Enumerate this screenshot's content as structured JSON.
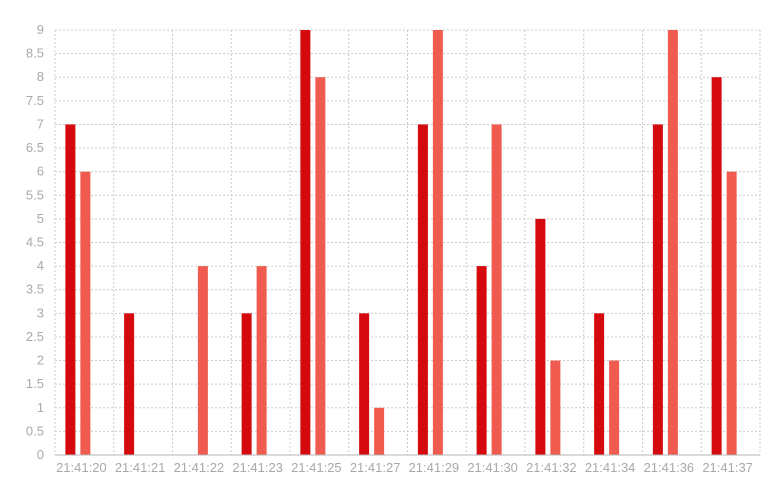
{
  "chart_data": {
    "type": "bar",
    "title": "",
    "xlabel": "",
    "ylabel": "",
    "ylim": [
      0,
      9
    ],
    "y_ticks": [
      "0",
      "0.5",
      "1",
      "1.5",
      "2",
      "2.5",
      "3",
      "3.5",
      "4",
      "4.5",
      "5",
      "5.5",
      "6",
      "6.5",
      "7",
      "7.5",
      "8",
      "8.5",
      "9"
    ],
    "categories": [
      "21:41:20",
      "21:41:21",
      "21:41:22",
      "21:41:23",
      "21:41:25",
      "21:41:27",
      "21:41:29",
      "21:41:30",
      "21:41:32",
      "21:41:34",
      "21:41:36",
      "21:41:37"
    ],
    "series": [
      {
        "values": [
          7,
          3,
          0,
          3,
          9,
          3,
          7,
          4,
          5,
          3,
          7,
          8
        ],
        "color": "#d40a0e"
      },
      {
        "values": [
          6,
          0,
          4,
          4,
          8,
          1,
          9,
          7,
          2,
          2,
          9,
          6
        ],
        "color": "#ef5b4f"
      }
    ],
    "grid": true,
    "legend": "none",
    "colors": {
      "grid": "#cccccc",
      "tick_label": "#a9a9a9",
      "axis": "#b5b5b5"
    }
  }
}
